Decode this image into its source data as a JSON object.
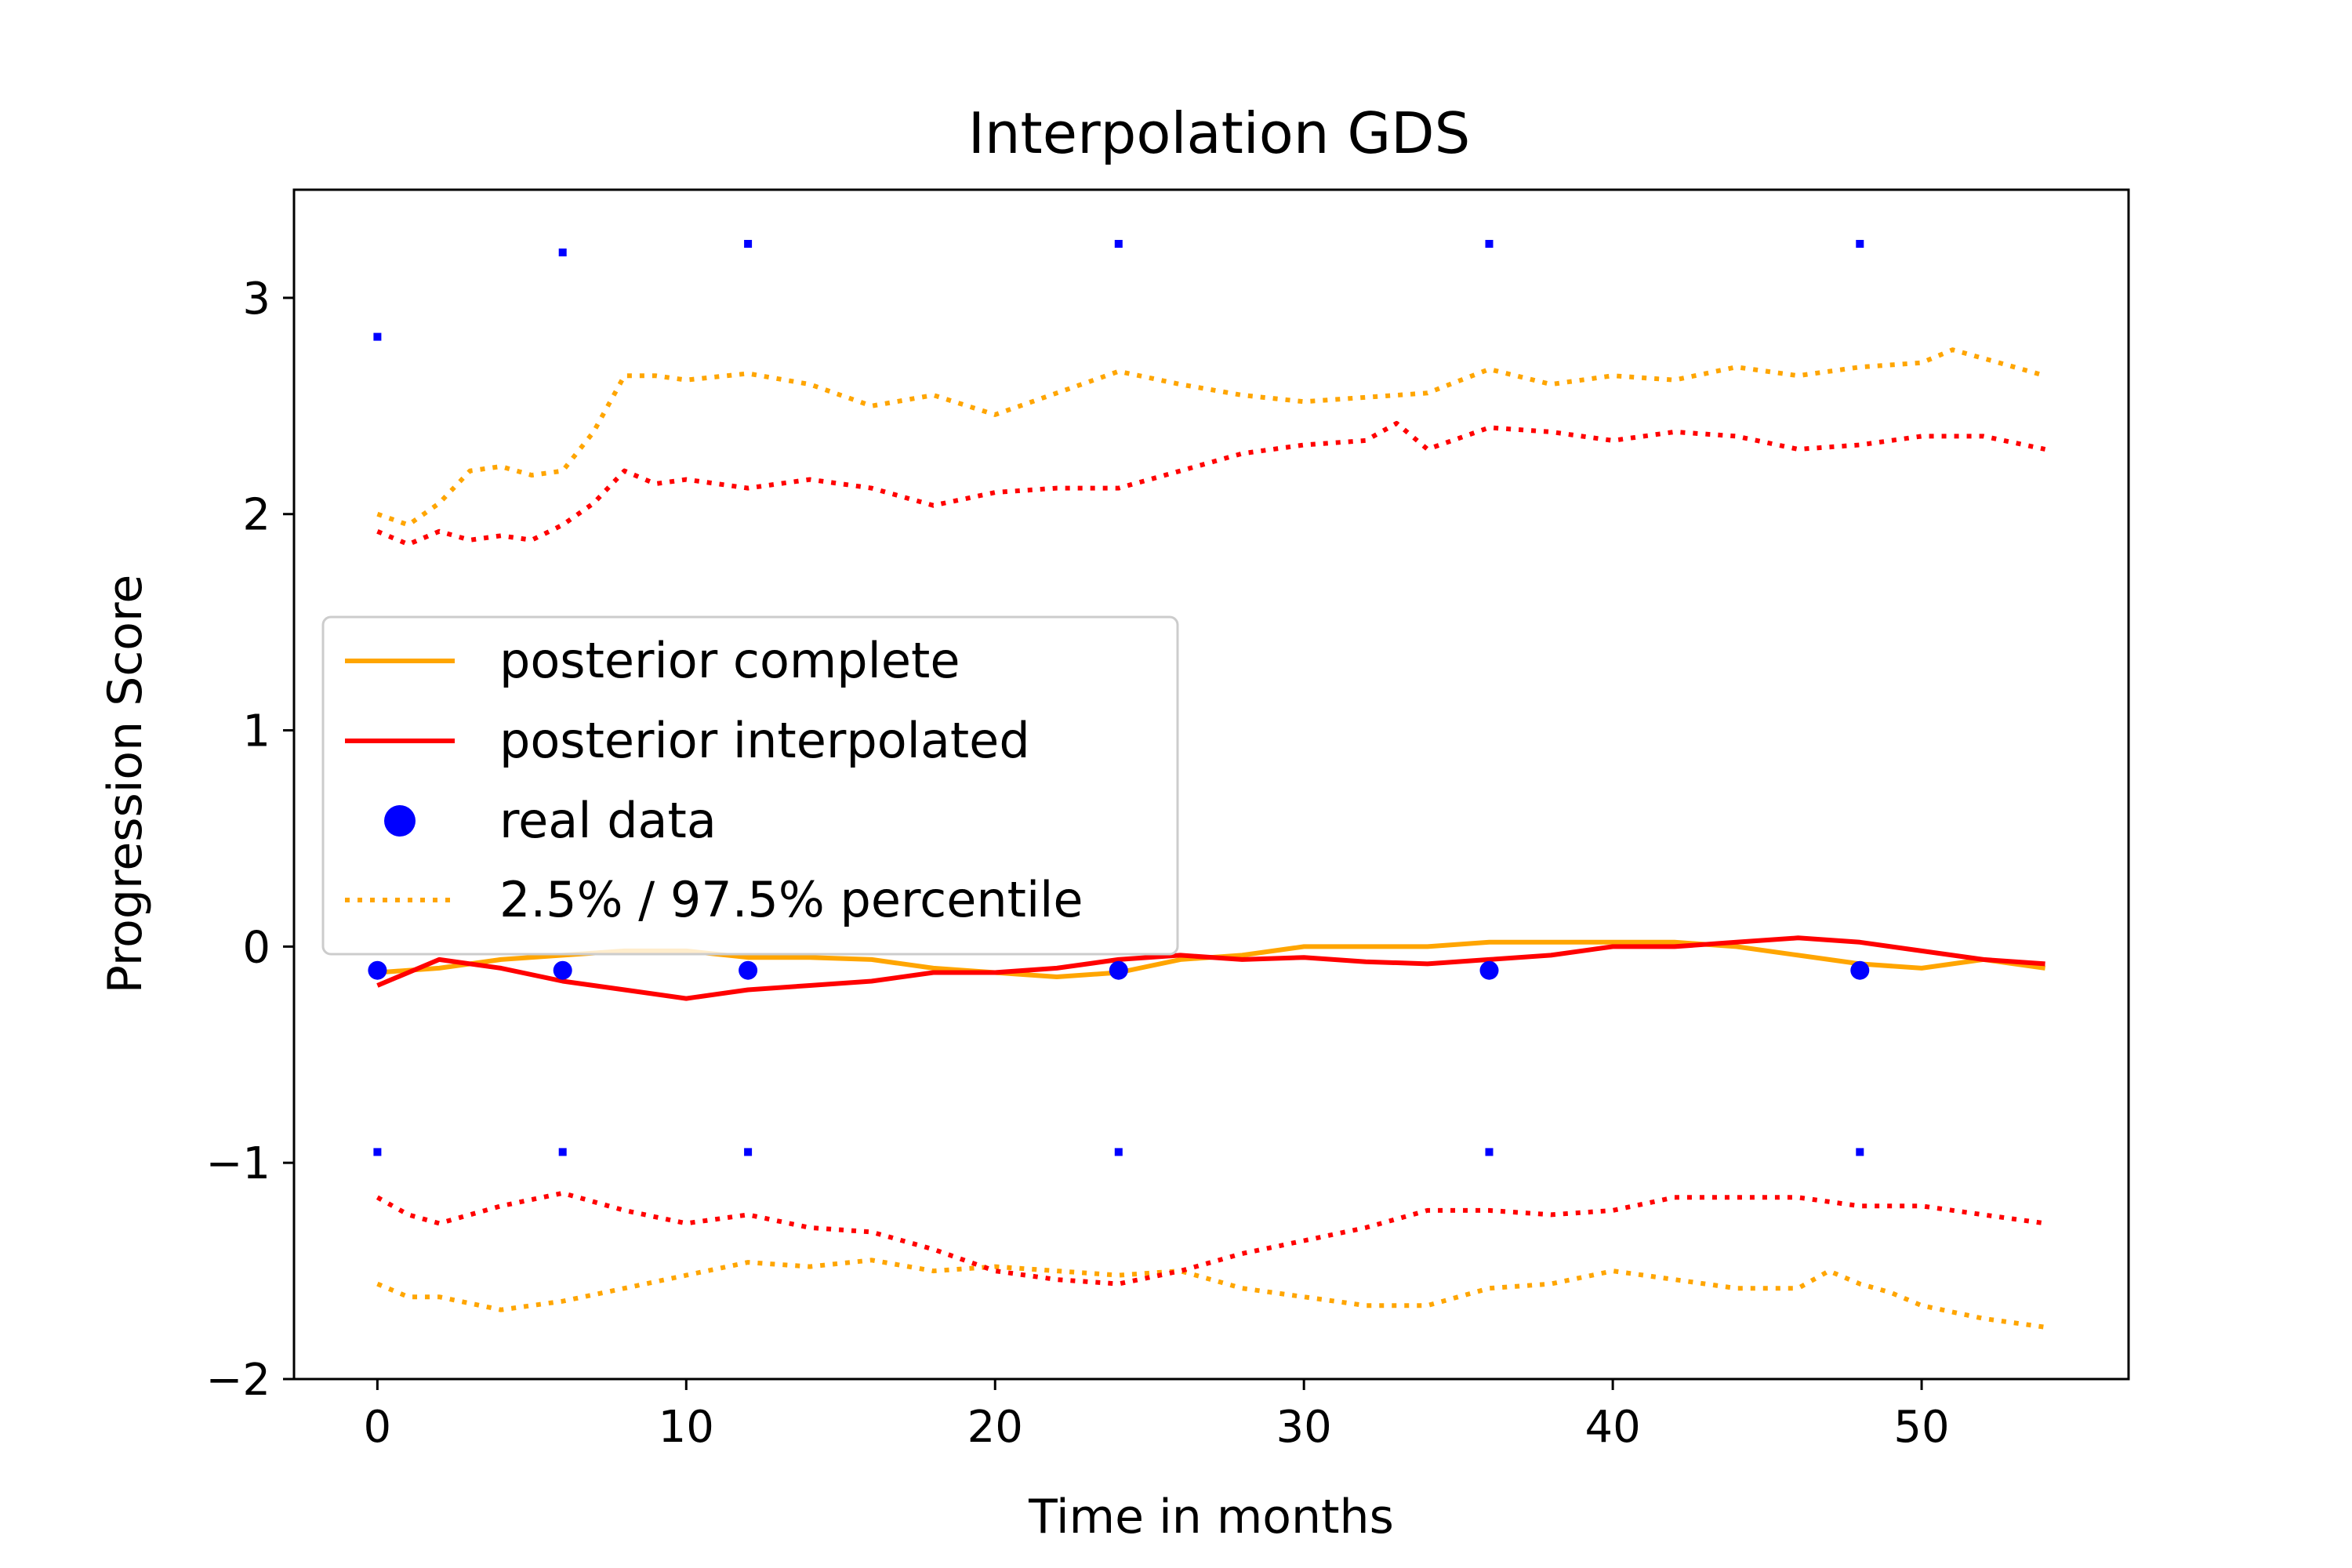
{
  "chart_data": {
    "type": "line",
    "title": "Interpolation GDS",
    "xlabel": "Time in months",
    "ylabel": "Progression Score",
    "xlim": [
      -2.7,
      56.7
    ],
    "ylim": [
      -2.0,
      3.5
    ],
    "xticks": [
      0,
      10,
      20,
      30,
      40,
      50
    ],
    "yticks": [
      -2,
      -1,
      0,
      1,
      2,
      3
    ],
    "ytick_labels": [
      "−2",
      "−1",
      "0",
      "1",
      "2",
      "3"
    ],
    "grid": false,
    "legend_position": "center-left",
    "legend": [
      {
        "label": "posterior complete",
        "style": "solid",
        "color": "#ffa500"
      },
      {
        "label": "posterior interpolated",
        "style": "solid",
        "color": "#ff0000"
      },
      {
        "label": "real data",
        "style": "marker",
        "color": "#0000ff"
      },
      {
        "label": "2.5% / 97.5% percentile",
        "style": "dotted",
        "color": "#ffa500"
      }
    ],
    "series": [
      {
        "name": "posterior complete",
        "style": "solid",
        "color": "#ffa500",
        "x": [
          0,
          2,
          4,
          6,
          8,
          10,
          12,
          14,
          16,
          18,
          20,
          22,
          24,
          26,
          28,
          30,
          32,
          34,
          36,
          38,
          40,
          42,
          44,
          46,
          48,
          50,
          52,
          54
        ],
        "y": [
          -0.12,
          -0.1,
          -0.06,
          -0.04,
          -0.02,
          -0.02,
          -0.05,
          -0.05,
          -0.06,
          -0.1,
          -0.12,
          -0.14,
          -0.12,
          -0.06,
          -0.04,
          0.0,
          0.0,
          0.0,
          0.02,
          0.02,
          0.02,
          0.02,
          0.0,
          -0.04,
          -0.08,
          -0.1,
          -0.06,
          -0.1
        ]
      },
      {
        "name": "posterior interpolated",
        "style": "solid",
        "color": "#ff0000",
        "x": [
          0,
          2,
          4,
          6,
          8,
          10,
          12,
          14,
          16,
          18,
          20,
          22,
          24,
          26,
          28,
          30,
          32,
          34,
          36,
          38,
          40,
          42,
          44,
          46,
          48,
          50,
          52,
          54
        ],
        "y": [
          -0.18,
          -0.06,
          -0.1,
          -0.16,
          -0.2,
          -0.24,
          -0.2,
          -0.18,
          -0.16,
          -0.12,
          -0.12,
          -0.1,
          -0.06,
          -0.04,
          -0.06,
          -0.05,
          -0.07,
          -0.08,
          -0.06,
          -0.04,
          0.0,
          0.0,
          0.02,
          0.04,
          0.02,
          -0.02,
          -0.06,
          -0.08
        ]
      },
      {
        "name": "posterior complete 97.5%",
        "style": "dotted",
        "color": "#ffa500",
        "x": [
          0,
          1,
          2,
          3,
          4,
          5,
          6,
          7,
          8,
          9,
          10,
          12,
          14,
          16,
          18,
          20,
          22,
          24,
          26,
          28,
          30,
          32,
          34,
          36,
          38,
          40,
          42,
          44,
          46,
          48,
          50,
          51,
          52,
          54
        ],
        "y": [
          2.0,
          1.95,
          2.05,
          2.2,
          2.22,
          2.18,
          2.2,
          2.38,
          2.64,
          2.64,
          2.62,
          2.65,
          2.6,
          2.5,
          2.55,
          2.46,
          2.56,
          2.66,
          2.6,
          2.55,
          2.52,
          2.54,
          2.56,
          2.67,
          2.6,
          2.64,
          2.62,
          2.68,
          2.64,
          2.68,
          2.7,
          2.76,
          2.72,
          2.64
        ]
      },
      {
        "name": "posterior interpolated 97.5%",
        "style": "dotted",
        "color": "#ff0000",
        "x": [
          0,
          1,
          2,
          3,
          4,
          5,
          6,
          7,
          8,
          9,
          10,
          12,
          14,
          16,
          18,
          20,
          22,
          24,
          26,
          28,
          30,
          32,
          33,
          34,
          36,
          38,
          40,
          42,
          44,
          46,
          48,
          50,
          52,
          54
        ],
        "y": [
          1.92,
          1.86,
          1.92,
          1.88,
          1.9,
          1.88,
          1.95,
          2.05,
          2.2,
          2.14,
          2.16,
          2.12,
          2.16,
          2.12,
          2.04,
          2.1,
          2.12,
          2.12,
          2.2,
          2.28,
          2.32,
          2.34,
          2.42,
          2.3,
          2.4,
          2.38,
          2.34,
          2.38,
          2.36,
          2.3,
          2.32,
          2.36,
          2.36,
          2.3
        ]
      },
      {
        "name": "posterior complete 2.5%",
        "style": "dotted",
        "color": "#ffa500",
        "x": [
          0,
          1,
          2,
          4,
          6,
          8,
          10,
          12,
          14,
          16,
          18,
          20,
          22,
          24,
          26,
          28,
          30,
          32,
          34,
          36,
          38,
          40,
          42,
          44,
          46,
          47,
          48,
          49,
          50,
          52,
          54
        ],
        "y": [
          -1.56,
          -1.62,
          -1.62,
          -1.68,
          -1.64,
          -1.58,
          -1.52,
          -1.46,
          -1.48,
          -1.45,
          -1.5,
          -1.48,
          -1.5,
          -1.52,
          -1.5,
          -1.58,
          -1.62,
          -1.66,
          -1.66,
          -1.58,
          -1.56,
          -1.5,
          -1.54,
          -1.58,
          -1.58,
          -1.5,
          -1.56,
          -1.6,
          -1.66,
          -1.72,
          -1.76
        ]
      },
      {
        "name": "posterior interpolated 2.5%",
        "style": "dotted",
        "color": "#ff0000",
        "x": [
          0,
          1,
          2,
          4,
          6,
          7,
          8,
          10,
          12,
          14,
          16,
          18,
          20,
          22,
          24,
          26,
          28,
          30,
          32,
          34,
          36,
          38,
          40,
          42,
          44,
          46,
          48,
          50,
          52,
          54
        ],
        "y": [
          -1.16,
          -1.24,
          -1.28,
          -1.2,
          -1.14,
          -1.18,
          -1.22,
          -1.28,
          -1.24,
          -1.3,
          -1.32,
          -1.4,
          -1.5,
          -1.54,
          -1.56,
          -1.5,
          -1.42,
          -1.36,
          -1.3,
          -1.22,
          -1.22,
          -1.24,
          -1.22,
          -1.16,
          -1.16,
          -1.16,
          -1.2,
          -1.2,
          -1.24,
          -1.28
        ]
      }
    ],
    "real_data": {
      "name": "real data",
      "color": "#0000ff",
      "x": [
        0,
        6,
        12,
        24,
        36,
        48
      ],
      "y": [
        -0.11,
        -0.11,
        -0.11,
        -0.11,
        -0.11,
        -0.11
      ]
    },
    "error_markers": {
      "color": "#0000ff",
      "x": [
        0,
        6,
        12,
        24,
        36,
        48
      ],
      "upper": [
        2.82,
        3.21,
        3.25,
        3.25,
        3.25,
        3.25
      ],
      "lower": [
        -0.95,
        -0.95,
        -0.95,
        -0.95,
        -0.95,
        -0.95
      ]
    }
  }
}
